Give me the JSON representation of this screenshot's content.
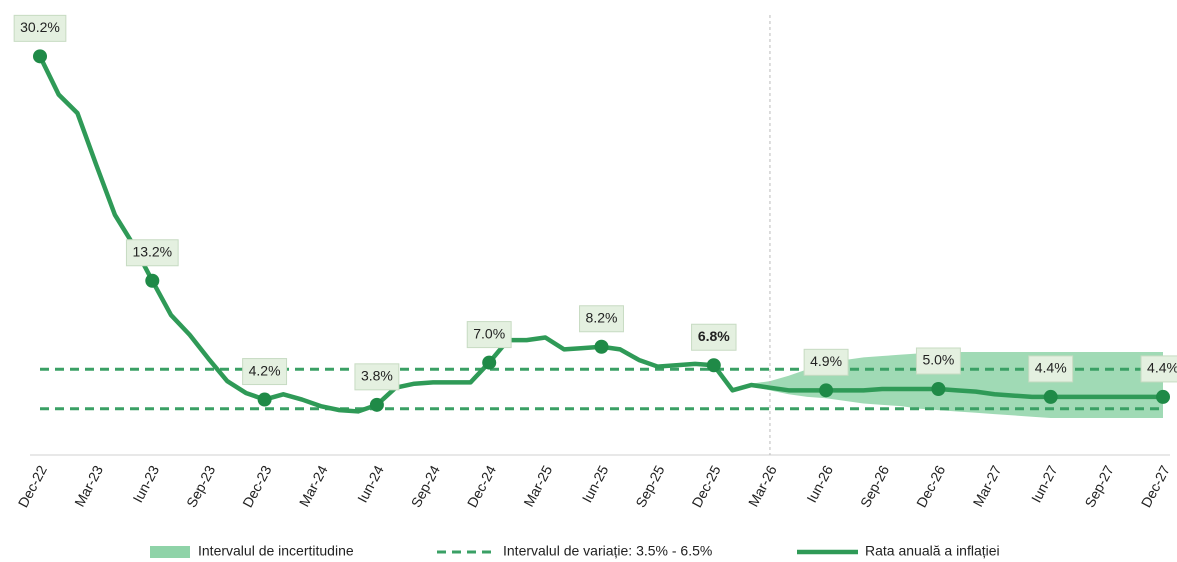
{
  "chart_data": {
    "type": "line",
    "categories": [
      "Dec-22",
      null,
      null,
      "Mar-23",
      null,
      null,
      "Iun-23",
      null,
      null,
      "Sep-23",
      null,
      null,
      "Dec-23",
      null,
      null,
      "Mar-24",
      null,
      null,
      "Iun-24",
      null,
      null,
      "Sep-24",
      null,
      null,
      "Dec-24",
      null,
      null,
      "Mar-25",
      null,
      null,
      "Iun-25",
      null,
      null,
      "Sep-25",
      null,
      null,
      "Dec-25",
      null,
      null,
      "Mar-26",
      null,
      null,
      "Iun-26",
      null,
      null,
      "Sep-26",
      null,
      null,
      "Dec-26",
      null,
      null,
      "Mar-27",
      null,
      null,
      "Iun-27",
      null,
      null,
      "Sep-27",
      null,
      null,
      "Dec-27"
    ],
    "series": [
      {
        "name": "Rata anuală a inflației",
        "color": "#2f9a57",
        "values": [
          30.2,
          27.3,
          25.9,
          22.0,
          18.2,
          15.9,
          13.2,
          10.6,
          9.1,
          7.3,
          5.6,
          4.7,
          4.2,
          4.6,
          4.2,
          3.7,
          3.4,
          3.3,
          3.8,
          5.1,
          5.4,
          5.5,
          5.5,
          5.5,
          7.0,
          8.7,
          8.7,
          8.9,
          8.0,
          8.1,
          8.2,
          8.0,
          7.2,
          6.7,
          6.8,
          6.9,
          6.8,
          4.9,
          5.3,
          5.1,
          4.9,
          4.9,
          4.9,
          4.9,
          4.9,
          5.0,
          5.0,
          5.0,
          5.0,
          4.9,
          4.8,
          4.6,
          4.5,
          4.4,
          4.4,
          4.4,
          4.4,
          4.4,
          4.4,
          4.4,
          4.4
        ],
        "value_labels": [
          "30.2%",
          null,
          null,
          null,
          null,
          null,
          "13.2%",
          null,
          null,
          null,
          null,
          null,
          "4.2%",
          null,
          null,
          null,
          null,
          null,
          "3.8%",
          null,
          null,
          null,
          null,
          null,
          "7.0%",
          null,
          null,
          null,
          null,
          null,
          "8.2%",
          null,
          null,
          null,
          null,
          null,
          "6.8%",
          null,
          null,
          null,
          null,
          null,
          "4.9%",
          null,
          null,
          null,
          null,
          null,
          "5.0%",
          null,
          null,
          null,
          null,
          null,
          "4.4%",
          null,
          null,
          null,
          null,
          null,
          "4.4%"
        ],
        "bold_labels": [
          36
        ]
      }
    ],
    "band": {
      "name": "Intervalul de incertitudine",
      "color": "#8fd3a8",
      "lower": [
        null,
        null,
        null,
        null,
        null,
        null,
        null,
        null,
        null,
        null,
        null,
        null,
        null,
        null,
        null,
        null,
        null,
        null,
        null,
        null,
        null,
        null,
        null,
        null,
        null,
        null,
        null,
        null,
        null,
        null,
        null,
        null,
        null,
        null,
        null,
        null,
        null,
        null,
        5.2,
        4.9,
        4.6,
        4.4,
        4.3,
        4.1,
        3.9,
        3.8,
        3.7,
        3.5,
        3.4,
        3.3,
        3.2,
        3.1,
        3.0,
        2.9,
        2.8,
        2.8,
        2.8,
        2.8,
        2.8,
        2.8,
        2.8
      ],
      "upper": [
        null,
        null,
        null,
        null,
        null,
        null,
        null,
        null,
        null,
        null,
        null,
        null,
        null,
        null,
        null,
        null,
        null,
        null,
        null,
        null,
        null,
        null,
        null,
        null,
        null,
        null,
        null,
        null,
        null,
        null,
        null,
        null,
        null,
        null,
        null,
        null,
        null,
        null,
        5.4,
        5.6,
        6.0,
        6.5,
        6.9,
        7.2,
        7.4,
        7.5,
        7.6,
        7.7,
        7.7,
        7.8,
        7.8,
        7.8,
        7.8,
        7.8,
        7.8,
        7.8,
        7.8,
        7.8,
        7.8,
        7.8,
        7.8
      ]
    },
    "reference": {
      "name": "Intervalul de variație: 3.5% - 6.5%",
      "color": "#3aa065",
      "values": [
        3.5,
        6.5
      ]
    },
    "divider_index": 39,
    "ylim": [
      0,
      33
    ]
  }
}
